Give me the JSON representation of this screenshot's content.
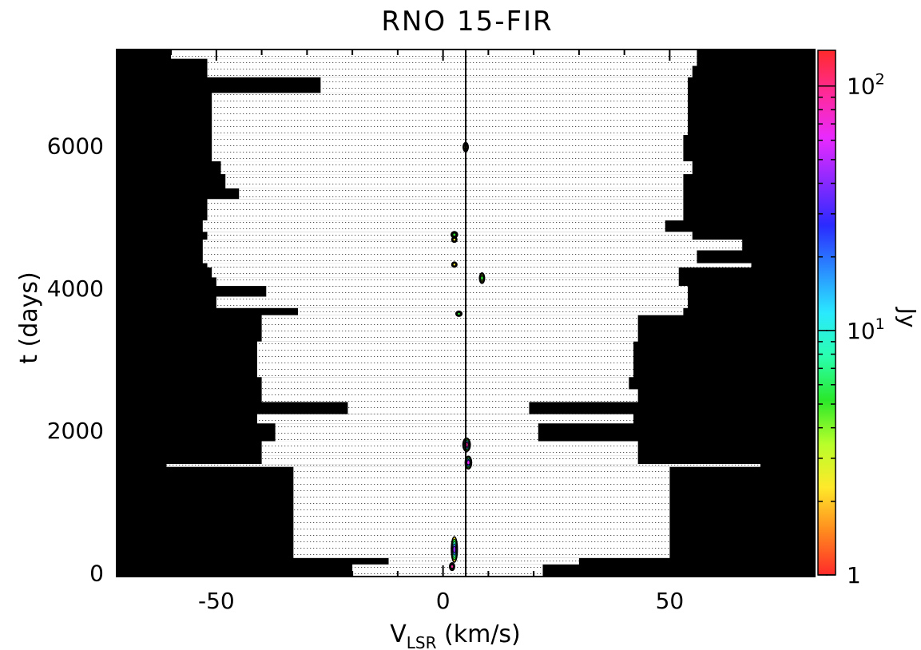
{
  "chart_data": {
    "type": "heatmap",
    "title": "RNO 15-FIR",
    "xlabel_main": "V",
    "xlabel_sub": "LSR",
    "xlabel_units": " (km/s)",
    "ylabel": "t (days)",
    "xlim": [
      -72,
      82
    ],
    "ylim": [
      -50,
      7350
    ],
    "x_ticks": [
      -50,
      0,
      50
    ],
    "x_tick_labels": [
      "-50",
      "0",
      "50"
    ],
    "y_ticks": [
      0,
      2000,
      4000,
      6000
    ],
    "y_tick_labels": [
      "0",
      "2000",
      "4000",
      "6000"
    ],
    "vertical_line_x": 5.0,
    "colorbar": {
      "label": "Jy",
      "scale": "log",
      "range": [
        1,
        140
      ],
      "tick_labels": [
        {
          "base": "1",
          "exp": "",
          "value": 1
        },
        {
          "base": "10",
          "exp": "1",
          "value": 10
        },
        {
          "base": "10",
          "exp": "2",
          "value": 100
        }
      ],
      "colors": [
        "#ff2a2a",
        "#ff8a1e",
        "#ffe92a",
        "#b8ff2a",
        "#2ae82a",
        "#2affb0",
        "#2ae9ff",
        "#2a8aff",
        "#2a2aff",
        "#8a2aff",
        "#e92aff",
        "#ff2a9a",
        "#ff2a2a"
      ]
    },
    "coverage_bands": [
      {
        "t0": 7220,
        "t1": 7350,
        "vmin": -60,
        "vmax": 56
      },
      {
        "t0": 7120,
        "t1": 7220,
        "vmin": -52,
        "vmax": 56
      },
      {
        "t0": 6960,
        "t1": 7120,
        "vmin": -52,
        "vmax": 55
      },
      {
        "t0": 6740,
        "t1": 6960,
        "vmin": -27,
        "vmax": 54
      },
      {
        "t0": 6150,
        "t1": 6740,
        "vmin": -51,
        "vmax": 54
      },
      {
        "t0": 5780,
        "t1": 6150,
        "vmin": -51,
        "vmax": 53
      },
      {
        "t0": 5600,
        "t1": 5780,
        "vmin": -49,
        "vmax": 55
      },
      {
        "t0": 5400,
        "t1": 5600,
        "vmin": -48,
        "vmax": 53
      },
      {
        "t0": 5250,
        "t1": 5400,
        "vmin": -45,
        "vmax": 53
      },
      {
        "t0": 4950,
        "t1": 5250,
        "vmin": -52,
        "vmax": 53
      },
      {
        "t0": 4790,
        "t1": 4950,
        "vmin": -53,
        "vmax": 49
      },
      {
        "t0": 4680,
        "t1": 4790,
        "vmin": -52,
        "vmax": 55
      },
      {
        "t0": 4530,
        "t1": 4680,
        "vmin": -53,
        "vmax": 66
      },
      {
        "t0": 4350,
        "t1": 4530,
        "vmin": -53,
        "vmax": 56
      },
      {
        "t0": 4290,
        "t1": 4350,
        "vmin": -52,
        "vmax": 68
      },
      {
        "t0": 4150,
        "t1": 4290,
        "vmin": -51,
        "vmax": 52
      },
      {
        "t0": 4030,
        "t1": 4150,
        "vmin": -50,
        "vmax": 52
      },
      {
        "t0": 3880,
        "t1": 4030,
        "vmin": -39,
        "vmax": 54
      },
      {
        "t0": 3720,
        "t1": 3880,
        "vmin": -50,
        "vmax": 54
      },
      {
        "t0": 3620,
        "t1": 3720,
        "vmin": -32,
        "vmax": 53
      },
      {
        "t0": 3250,
        "t1": 3620,
        "vmin": -40,
        "vmax": 43
      },
      {
        "t0": 2750,
        "t1": 3250,
        "vmin": -41,
        "vmax": 42
      },
      {
        "t0": 2580,
        "t1": 2750,
        "vmin": -40,
        "vmax": 41
      },
      {
        "t0": 2400,
        "t1": 2580,
        "vmin": -40,
        "vmax": 43
      },
      {
        "t0": 2230,
        "t1": 2400,
        "vmin": -21,
        "vmax": 19
      },
      {
        "t0": 2100,
        "t1": 2230,
        "vmin": -41,
        "vmax": 42
      },
      {
        "t0": 1850,
        "t1": 2100,
        "vmin": -37,
        "vmax": 21
      },
      {
        "t0": 1650,
        "t1": 1850,
        "vmin": -40,
        "vmax": 43
      },
      {
        "t0": 1530,
        "t1": 1650,
        "vmin": -40,
        "vmax": 43
      },
      {
        "t0": 1490,
        "t1": 1530,
        "vmin": -61,
        "vmax": 70
      },
      {
        "t0": 210,
        "t1": 1490,
        "vmin": -33,
        "vmax": 50
      },
      {
        "t0": 120,
        "t1": 210,
        "vmin": -12,
        "vmax": 30
      },
      {
        "t0": -50,
        "t1": 120,
        "vmin": -20,
        "vmax": 22
      }
    ],
    "emission_features": [
      {
        "v": 5.0,
        "t": 5980,
        "dv": 0.4,
        "dt": 100,
        "peak_jy": 2
      },
      {
        "v": 2.5,
        "t": 4750,
        "dv": 1.0,
        "dt": 60,
        "peak_jy": 5
      },
      {
        "v": 2.5,
        "t": 4680,
        "dv": 0.4,
        "dt": 40,
        "peak_jy": 2
      },
      {
        "v": 2.5,
        "t": 4330,
        "dv": 0.3,
        "dt": 40,
        "peak_jy": 2
      },
      {
        "v": 8.6,
        "t": 4140,
        "dv": 0.7,
        "dt": 120,
        "peak_jy": 6
      },
      {
        "v": 3.5,
        "t": 3640,
        "dv": 0.9,
        "dt": 40,
        "peak_jy": 6
      },
      {
        "v": 5.2,
        "t": 1800,
        "dv": 1.2,
        "dt": 160,
        "peak_jy": 80
      },
      {
        "v": 5.6,
        "t": 1550,
        "dv": 1.0,
        "dt": 150,
        "peak_jy": 60
      },
      {
        "v": 2.5,
        "t": 330,
        "dv": 0.9,
        "dt": 330,
        "peak_jy": 40
      },
      {
        "v": 2.0,
        "t": 90,
        "dv": 0.5,
        "dt": 80,
        "peak_jy": 100
      }
    ]
  }
}
